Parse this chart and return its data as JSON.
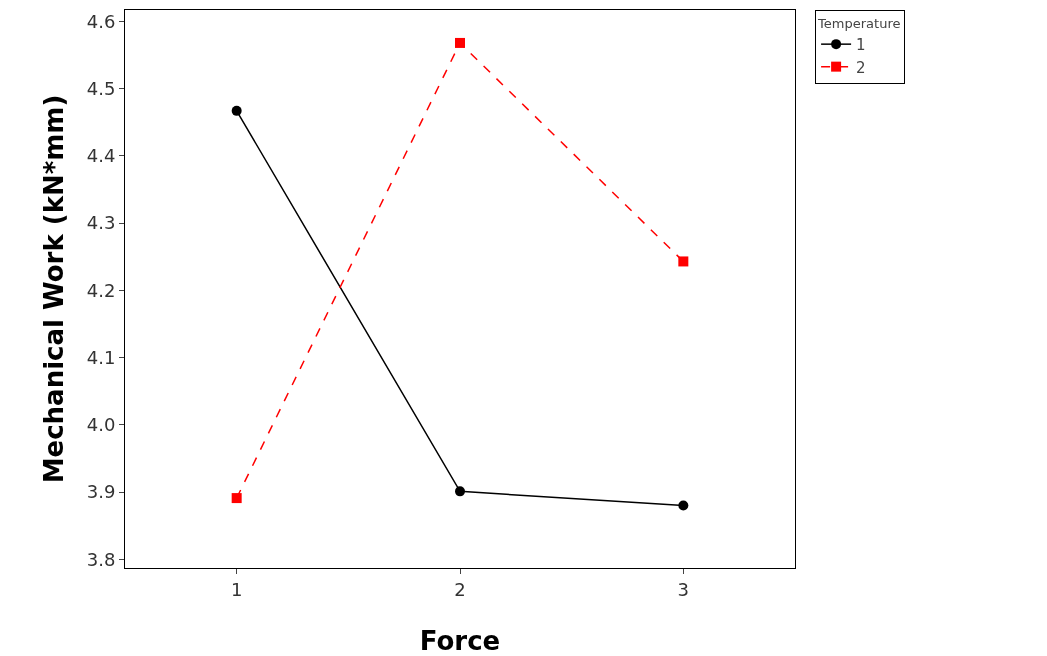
{
  "chart_data": {
    "type": "line",
    "xlabel": "Force",
    "ylabel": "Mechanical Work (kN*mm)",
    "legend_title": "Temperature",
    "legend": "top right",
    "grid": false,
    "x": [
      1,
      2,
      3
    ],
    "xlim": [
      0.5,
      3.5
    ],
    "xticks": [
      1,
      2,
      3
    ],
    "ylim": [
      3.787,
      4.617
    ],
    "yticks": [
      3.8,
      3.9,
      {
        "value": 4,
        "label": "4.0"
      },
      4.1,
      4.2,
      4.3,
      4.4,
      4.5,
      4.6
    ],
    "series": [
      {
        "name": "1",
        "color": "#000000",
        "marker": "circle",
        "line_style": "solid",
        "values": [
          4.467,
          3.901,
          3.88
        ]
      },
      {
        "name": "2",
        "color": "#ff0000",
        "marker": "square",
        "line_style": "dashed",
        "values": [
          3.891,
          4.568,
          4.243
        ]
      }
    ]
  }
}
